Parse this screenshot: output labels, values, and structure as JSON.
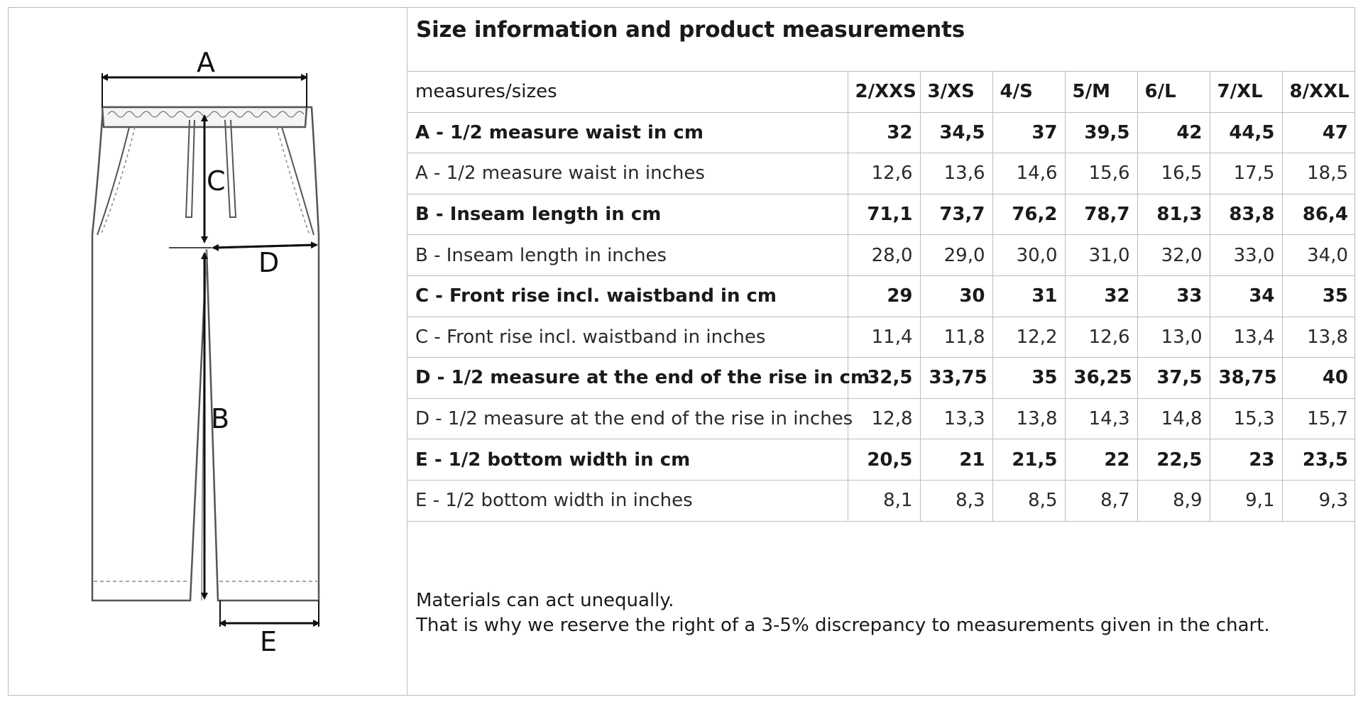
{
  "title": "Size information and product measurements",
  "diagram_labels": {
    "a": "A",
    "b": "B",
    "c": "C",
    "d": "D",
    "e": "E"
  },
  "table": {
    "header_label": "measures/sizes",
    "sizes": [
      "2/XXS",
      "3/XS",
      "4/S",
      "5/M",
      "6/L",
      "7/XL",
      "8/XXL"
    ],
    "rows": [
      {
        "label": "A - 1/2 measure waist in cm",
        "bold": true,
        "values": [
          "32",
          "34,5",
          "37",
          "39,5",
          "42",
          "44,5",
          "47"
        ]
      },
      {
        "label": "A - 1/2 measure waist in inches",
        "bold": false,
        "values": [
          "12,6",
          "13,6",
          "14,6",
          "15,6",
          "16,5",
          "17,5",
          "18,5"
        ]
      },
      {
        "label": "B - Inseam length in cm",
        "bold": true,
        "values": [
          "71,1",
          "73,7",
          "76,2",
          "78,7",
          "81,3",
          "83,8",
          "86,4"
        ]
      },
      {
        "label": "B - Inseam length in inches",
        "bold": false,
        "values": [
          "28,0",
          "29,0",
          "30,0",
          "31,0",
          "32,0",
          "33,0",
          "34,0"
        ]
      },
      {
        "label": "C - Front rise incl. waistband in cm",
        "bold": true,
        "values": [
          "29",
          "30",
          "31",
          "32",
          "33",
          "34",
          "35"
        ]
      },
      {
        "label": "C - Front rise incl. waistband in inches",
        "bold": false,
        "values": [
          "11,4",
          "11,8",
          "12,2",
          "12,6",
          "13,0",
          "13,4",
          "13,8"
        ]
      },
      {
        "label": "D - 1/2 measure at the end of the rise in cm",
        "bold": true,
        "values": [
          "32,5",
          "33,75",
          "35",
          "36,25",
          "37,5",
          "38,75",
          "40"
        ]
      },
      {
        "label": "D - 1/2 measure at the end of the rise in inches",
        "bold": false,
        "values": [
          "12,8",
          "13,3",
          "13,8",
          "14,3",
          "14,8",
          "15,3",
          "15,7"
        ]
      },
      {
        "label": "E - 1/2 bottom width in cm",
        "bold": true,
        "values": [
          "20,5",
          "21",
          "21,5",
          "22",
          "22,5",
          "23",
          "23,5"
        ]
      },
      {
        "label": "E - 1/2 bottom width in inches",
        "bold": false,
        "values": [
          "8,1",
          "8,3",
          "8,5",
          "8,7",
          "8,9",
          "9,1",
          "9,3"
        ]
      }
    ]
  },
  "note": {
    "line1": "Materials can act unequally.",
    "line2": "That is why we reserve the right of a 3-5% discrepancy to measurements given in the chart."
  }
}
